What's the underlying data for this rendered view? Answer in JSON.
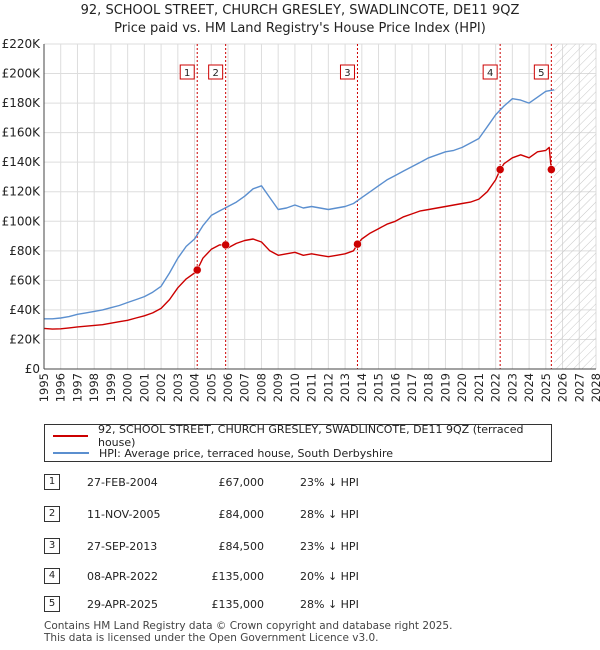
{
  "header": {
    "title": "92, SCHOOL STREET, CHURCH GRESLEY, SWADLINCOTE, DE11 9QZ",
    "subtitle": "Price paid vs. HM Land Registry's House Price Index (HPI)"
  },
  "chart_data": {
    "type": "line",
    "xlim": [
      1995,
      2028
    ],
    "ylim": [
      0,
      220000
    ],
    "x_ticks": [
      "1995",
      "1996",
      "1997",
      "1998",
      "1999",
      "2000",
      "2001",
      "2002",
      "2003",
      "2004",
      "2005",
      "2006",
      "2007",
      "2008",
      "2009",
      "2010",
      "2011",
      "2012",
      "2013",
      "2014",
      "2015",
      "2016",
      "2017",
      "2018",
      "2019",
      "2020",
      "2021",
      "2022",
      "2023",
      "2024",
      "2025",
      "2026",
      "2027",
      "2028"
    ],
    "y_ticks": [
      {
        "value": 0,
        "label": "£0"
      },
      {
        "value": 20000,
        "label": "£20K"
      },
      {
        "value": 40000,
        "label": "£40K"
      },
      {
        "value": 60000,
        "label": "£60K"
      },
      {
        "value": 80000,
        "label": "£80K"
      },
      {
        "value": 100000,
        "label": "£100K"
      },
      {
        "value": 120000,
        "label": "£120K"
      },
      {
        "value": 140000,
        "label": "£140K"
      },
      {
        "value": 160000,
        "label": "£160K"
      },
      {
        "value": 180000,
        "label": "£180K"
      },
      {
        "value": 200000,
        "label": "£200K"
      },
      {
        "value": 220000,
        "label": "£220K"
      }
    ],
    "grid": true,
    "hatched_after": 2025.5,
    "series": [
      {
        "name": "92, SCHOOL STREET, CHURCH GRESLEY, SWADLINCOTE, DE11 9QZ (terraced house)",
        "color": "#cc0000",
        "x": [
          1995.0,
          1995.5,
          1996.0,
          1996.5,
          1997.0,
          1997.5,
          1998.0,
          1998.5,
          1999.0,
          1999.5,
          2000.0,
          2000.5,
          2001.0,
          2001.5,
          2002.0,
          2002.5,
          2003.0,
          2003.5,
          2004.0,
          2004.16,
          2004.5,
          2005.0,
          2005.5,
          2005.86,
          2006.0,
          2006.5,
          2007.0,
          2007.5,
          2008.0,
          2008.5,
          2009.0,
          2009.5,
          2010.0,
          2010.5,
          2011.0,
          2011.5,
          2012.0,
          2012.5,
          2013.0,
          2013.5,
          2013.74,
          2014.0,
          2014.5,
          2015.0,
          2015.5,
          2016.0,
          2016.5,
          2017.0,
          2017.5,
          2018.0,
          2018.5,
          2019.0,
          2019.5,
          2020.0,
          2020.5,
          2021.0,
          2021.5,
          2022.0,
          2022.27,
          2022.5,
          2023.0,
          2023.5,
          2024.0,
          2024.5,
          2025.0,
          2025.2,
          2025.33
        ],
        "values": [
          27500,
          27000,
          27200,
          27800,
          28500,
          29000,
          29500,
          30000,
          31000,
          32000,
          33000,
          34500,
          36000,
          38000,
          41000,
          47000,
          55000,
          61000,
          65000,
          67000,
          75000,
          81000,
          84000,
          84000,
          82000,
          85000,
          87000,
          88000,
          86000,
          80000,
          77000,
          78000,
          79000,
          77000,
          78000,
          77000,
          76000,
          77000,
          78000,
          80000,
          84500,
          88000,
          92000,
          95000,
          98000,
          100000,
          103000,
          105000,
          107000,
          108000,
          109000,
          110000,
          111000,
          112000,
          113000,
          115000,
          120000,
          128000,
          135000,
          139000,
          143000,
          145000,
          143000,
          147000,
          148000,
          150000,
          135000
        ]
      },
      {
        "name": "HPI: Average price, terraced house, South Derbyshire",
        "color": "#5b8fcf",
        "x": [
          1995.0,
          1995.5,
          1996.0,
          1996.5,
          1997.0,
          1997.5,
          1998.0,
          1998.5,
          1999.0,
          1999.5,
          2000.0,
          2000.5,
          2001.0,
          2001.5,
          2002.0,
          2002.5,
          2003.0,
          2003.5,
          2004.0,
          2004.5,
          2005.0,
          2005.5,
          2006.0,
          2006.5,
          2007.0,
          2007.5,
          2008.0,
          2008.5,
          2009.0,
          2009.5,
          2010.0,
          2010.5,
          2011.0,
          2011.5,
          2012.0,
          2012.5,
          2013.0,
          2013.5,
          2014.0,
          2014.5,
          2015.0,
          2015.5,
          2016.0,
          2016.5,
          2017.0,
          2017.5,
          2018.0,
          2018.5,
          2019.0,
          2019.5,
          2020.0,
          2020.5,
          2021.0,
          2021.5,
          2022.0,
          2022.5,
          2023.0,
          2023.5,
          2024.0,
          2024.5,
          2025.0,
          2025.5
        ],
        "values": [
          34000,
          34000,
          34500,
          35500,
          37000,
          38000,
          39000,
          40000,
          41500,
          43000,
          45000,
          47000,
          49000,
          52000,
          56000,
          65000,
          75000,
          83000,
          88000,
          97000,
          104000,
          107000,
          110000,
          113000,
          117000,
          122000,
          124000,
          116000,
          108000,
          109000,
          111000,
          109000,
          110000,
          109000,
          108000,
          109000,
          110000,
          112000,
          116000,
          120000,
          124000,
          128000,
          131000,
          134000,
          137000,
          140000,
          143000,
          145000,
          147000,
          148000,
          150000,
          153000,
          156000,
          164000,
          172000,
          178000,
          183000,
          182000,
          180000,
          184000,
          188000,
          189000
        ]
      }
    ],
    "transactions": [
      {
        "num": "1",
        "year": 2004.16,
        "value": 67000,
        "date": "27-FEB-2004",
        "price": "£67,000",
        "hpi": "23% ↓ HPI"
      },
      {
        "num": "2",
        "year": 2005.86,
        "value": 84000,
        "date": "11-NOV-2005",
        "price": "£84,000",
        "hpi": "28% ↓ HPI"
      },
      {
        "num": "3",
        "year": 2013.74,
        "value": 84500,
        "date": "27-SEP-2013",
        "price": "£84,500",
        "hpi": "23% ↓ HPI"
      },
      {
        "num": "4",
        "year": 2022.27,
        "value": 135000,
        "date": "08-APR-2022",
        "price": "£135,000",
        "hpi": "20% ↓ HPI"
      },
      {
        "num": "5",
        "year": 2025.33,
        "value": 135000,
        "date": "29-APR-2025",
        "price": "£135,000",
        "hpi": "28% ↓ HPI"
      }
    ]
  },
  "footer": {
    "line1": "Contains HM Land Registry data © Crown copyright and database right 2025.",
    "line2": "This data is licensed under the Open Government Licence v3.0."
  }
}
